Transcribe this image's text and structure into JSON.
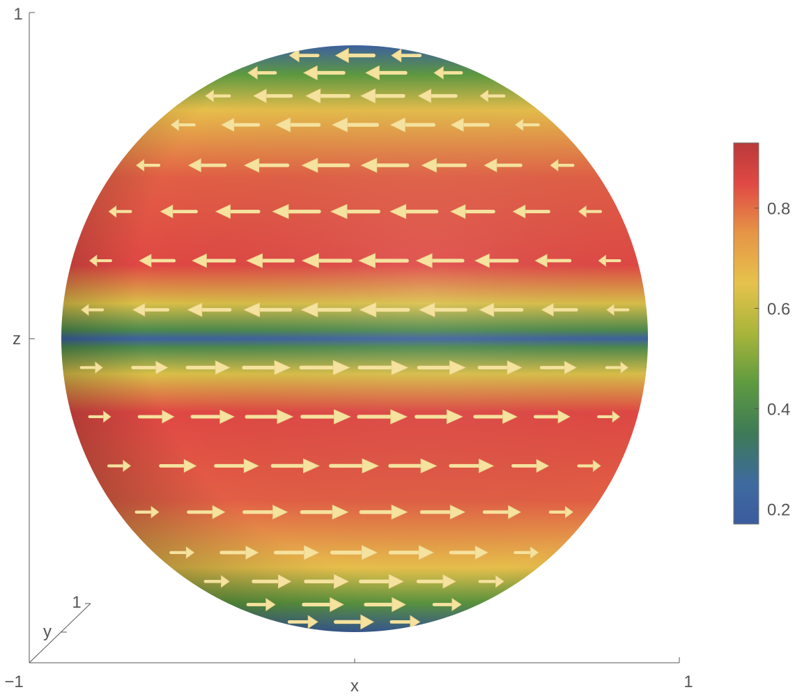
{
  "chart_data": {
    "type": "heatmap",
    "title": "",
    "xlabel": "x",
    "ylabel": "y",
    "zlabel": "z",
    "ticks": {
      "x": [
        "−1",
        "1"
      ],
      "y": [
        "1"
      ],
      "z": [
        "1"
      ]
    },
    "xlim": [
      -1,
      1
    ],
    "zlim": [
      -1,
      1
    ],
    "surface": "unit sphere",
    "vector_field": "azimuthal (tangential) arrows, pointing −x in upper hemisphere and +x in lower hemisphere",
    "arrow_color": "#f5e29e",
    "colorbar": {
      "position": "right",
      "range": [
        0.17,
        0.93
      ],
      "ticks": [
        "0.8",
        "0.6",
        "0.4",
        "0.2"
      ],
      "tick_values": [
        0.8,
        0.6,
        0.4,
        0.2
      ],
      "stops": [
        {
          "value": 0.17,
          "color": "#3c5b9e"
        },
        {
          "value": 0.25,
          "color": "#3e6aa0"
        },
        {
          "value": 0.35,
          "color": "#3e7a57"
        },
        {
          "value": 0.45,
          "color": "#5e9a40"
        },
        {
          "value": 0.55,
          "color": "#a8b53a"
        },
        {
          "value": 0.65,
          "color": "#e6c24c"
        },
        {
          "value": 0.75,
          "color": "#e69546"
        },
        {
          "value": 0.85,
          "color": "#e04844"
        },
        {
          "value": 0.93,
          "color": "#b93a3a"
        }
      ]
    },
    "latitude_bands": [
      {
        "z": 1.0,
        "value": 0.2
      },
      {
        "z": 0.9,
        "value": 0.45
      },
      {
        "z": 0.78,
        "value": 0.66
      },
      {
        "z": 0.55,
        "value": 0.82
      },
      {
        "z": 0.25,
        "value": 0.85
      },
      {
        "z": 0.12,
        "value": 0.63
      },
      {
        "z": 0.03,
        "value": 0.4
      },
      {
        "z": 0.0,
        "value": 0.2
      },
      {
        "z": -0.03,
        "value": 0.4
      },
      {
        "z": -0.12,
        "value": 0.63
      },
      {
        "z": -0.25,
        "value": 0.85
      },
      {
        "z": -0.55,
        "value": 0.82
      },
      {
        "z": -0.78,
        "value": 0.66
      },
      {
        "z": -0.9,
        "value": 0.45
      },
      {
        "z": -1.0,
        "value": 0.2
      }
    ]
  }
}
